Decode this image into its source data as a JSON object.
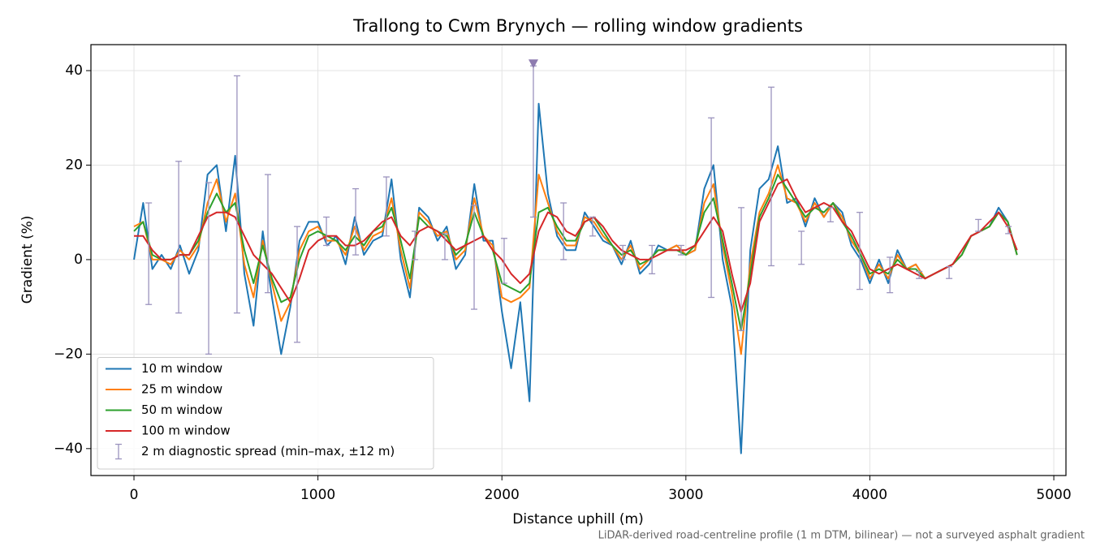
{
  "chart_data": {
    "type": "line",
    "title": "Trallong to Cwm Brynych — rolling window gradients",
    "x_label": "Distance uphill (m)",
    "y_label": "Gradient (%)",
    "footnote": "LiDAR-derived road-centreline profile (1 m DTM, bilinear) — not a surveyed asphalt gradient",
    "xlim": [
      -234,
      5066
    ],
    "ylim": [
      -45.7,
      45.5
    ],
    "xticks": [
      0,
      1000,
      2000,
      3000,
      4000,
      5000
    ],
    "yticks": [
      {
        "value": -40,
        "label": "−40"
      },
      {
        "value": -20,
        "label": "−20"
      },
      0,
      20,
      40
    ],
    "grid": true,
    "legend": "lower left",
    "x": [
      0,
      50,
      100,
      150,
      200,
      250,
      300,
      350,
      400,
      450,
      500,
      550,
      600,
      650,
      700,
      750,
      800,
      850,
      900,
      950,
      1000,
      1050,
      1100,
      1150,
      1200,
      1250,
      1300,
      1350,
      1400,
      1450,
      1500,
      1550,
      1600,
      1650,
      1700,
      1750,
      1800,
      1850,
      1900,
      1950,
      2000,
      2050,
      2100,
      2150,
      2200,
      2250,
      2300,
      2350,
      2400,
      2450,
      2500,
      2550,
      2600,
      2650,
      2700,
      2750,
      2800,
      2850,
      2900,
      2950,
      3000,
      3050,
      3100,
      3150,
      3200,
      3250,
      3300,
      3350,
      3400,
      3450,
      3500,
      3550,
      3600,
      3650,
      3700,
      3750,
      3800,
      3850,
      3900,
      3950,
      4000,
      4050,
      4100,
      4150,
      4200,
      4250,
      4300,
      4350,
      4400,
      4450,
      4500,
      4550,
      4600,
      4650,
      4700,
      4750,
      4800
    ],
    "series": [
      {
        "name": "10 m window",
        "color": "#1f77b4",
        "values": [
          0,
          12,
          -2,
          1,
          -2,
          3,
          -3,
          2,
          18,
          20,
          6,
          22,
          -3,
          -14,
          6,
          -8,
          -20,
          -10,
          4,
          8,
          8,
          3,
          5,
          -1,
          9,
          1,
          4,
          5,
          17,
          0,
          -8,
          11,
          9,
          4,
          7,
          -2,
          1,
          16,
          4,
          4,
          -11,
          -23,
          -9,
          -30,
          33,
          14,
          5,
          2,
          2,
          10,
          7,
          4,
          3,
          -1,
          4,
          -3,
          -1,
          3,
          2,
          3,
          1,
          2,
          15,
          20,
          0,
          -10,
          -41,
          2,
          15,
          17,
          24,
          12,
          13,
          7,
          13,
          9,
          12,
          10,
          3,
          0,
          -5,
          0,
          -5,
          2,
          -2,
          -1,
          -4,
          -3,
          -2,
          -1,
          1,
          5,
          6,
          7,
          11,
          8,
          1
        ]
      },
      {
        "name": "25 m window",
        "color": "#ff7f0e",
        "values": [
          7,
          8,
          0,
          0,
          -1,
          2,
          0,
          3,
          12,
          17,
          8,
          14,
          -1,
          -8,
          4,
          -5,
          -13,
          -9,
          2,
          6,
          7,
          4,
          4,
          1,
          7,
          2,
          5,
          6,
          13,
          2,
          -6,
          10,
          8,
          5,
          6,
          0,
          2,
          13,
          5,
          3,
          -8,
          -9,
          -8,
          -6,
          18,
          12,
          6,
          3,
          3,
          9,
          8,
          5,
          3,
          0,
          3,
          -2,
          0,
          2,
          2,
          3,
          1,
          2,
          12,
          16,
          3,
          -7,
          -20,
          -1,
          10,
          14,
          20,
          13,
          12,
          8,
          12,
          9,
          12,
          9,
          4,
          1,
          -4,
          -1,
          -4,
          1,
          -2,
          -1,
          -4,
          -3,
          -2,
          -1,
          1,
          5,
          6,
          7,
          10,
          8,
          1
        ]
      },
      {
        "name": "50 m window",
        "color": "#2ca02c",
        "values": [
          6,
          8,
          1,
          0,
          0,
          1,
          1,
          4,
          10,
          14,
          10,
          12,
          2,
          -5,
          3,
          -4,
          -9,
          -8,
          0,
          5,
          6,
          5,
          4,
          2,
          5,
          3,
          6,
          7,
          11,
          4,
          -4,
          9,
          7,
          6,
          5,
          1,
          3,
          10,
          5,
          2,
          -5,
          -6,
          -7,
          -5,
          10,
          11,
          7,
          4,
          4,
          8,
          9,
          6,
          3,
          1,
          2,
          -1,
          0,
          2,
          2,
          2,
          1,
          3,
          10,
          13,
          4,
          -5,
          -15,
          -3,
          9,
          13,
          18,
          15,
          12,
          9,
          11,
          10,
          12,
          8,
          5,
          1,
          -3,
          -2,
          -3,
          0,
          -2,
          -2,
          -4,
          -3,
          -2,
          -1,
          1,
          5,
          6,
          7,
          10,
          8,
          1
        ]
      },
      {
        "name": "100 m window",
        "color": "#d62728",
        "values": [
          5,
          5,
          2,
          0,
          0,
          1,
          1,
          5,
          9,
          10,
          10,
          9,
          5,
          1,
          -1,
          -3,
          -6,
          -9,
          -4,
          2,
          4,
          5,
          5,
          3,
          3,
          4,
          6,
          8,
          9,
          5,
          3,
          6,
          7,
          6,
          4,
          2,
          3,
          4,
          5,
          2,
          0,
          -3,
          -5,
          -3,
          6,
          10,
          9,
          6,
          5,
          8,
          9,
          7,
          4,
          2,
          1,
          0,
          0,
          1,
          2,
          2,
          2,
          3,
          6,
          9,
          6,
          -3,
          -11,
          -5,
          8,
          12,
          16,
          17,
          13,
          10,
          11,
          12,
          11,
          8,
          6,
          2,
          -2,
          -3,
          -2,
          -1,
          -2,
          -3,
          -4,
          -3,
          -2,
          -1,
          2,
          5,
          6,
          8,
          10,
          7,
          2
        ]
      }
    ],
    "errorbars": {
      "name": "2 m diagnostic spread (min–max, ±12 m)",
      "color": "#9b93be",
      "x": [
        80,
        243,
        406,
        560,
        728,
        887,
        1046,
        1205,
        1372,
        1527,
        1690,
        1849,
        2012,
        2171,
        2335,
        2493,
        2657,
        2816,
        2974,
        3138,
        3301,
        3464,
        3628,
        3786,
        3945,
        4109,
        4268,
        4431,
        4590,
        4753
      ],
      "low": [
        -9.5,
        -11.3,
        -20,
        -11.3,
        -7,
        -17.5,
        3,
        1,
        5,
        0,
        0,
        -10.5,
        -5,
        9,
        0,
        5,
        0,
        -3,
        1,
        -8,
        -15,
        -1.3,
        -1,
        8,
        -6.3,
        -7,
        -4,
        -4,
        6,
        5.5
      ],
      "high": [
        12,
        20.8,
        16.3,
        38.9,
        18,
        7,
        9,
        15,
        17.5,
        6,
        5.5,
        11.5,
        4.5,
        41,
        12,
        9,
        3,
        3,
        3,
        30,
        11,
        36.5,
        6,
        11,
        10,
        0.5,
        -2.5,
        -1.5,
        8.5,
        7
      ]
    },
    "markers": {
      "x": [
        2171
      ],
      "values": [
        41.5
      ],
      "color": "#8e7cb0"
    }
  }
}
